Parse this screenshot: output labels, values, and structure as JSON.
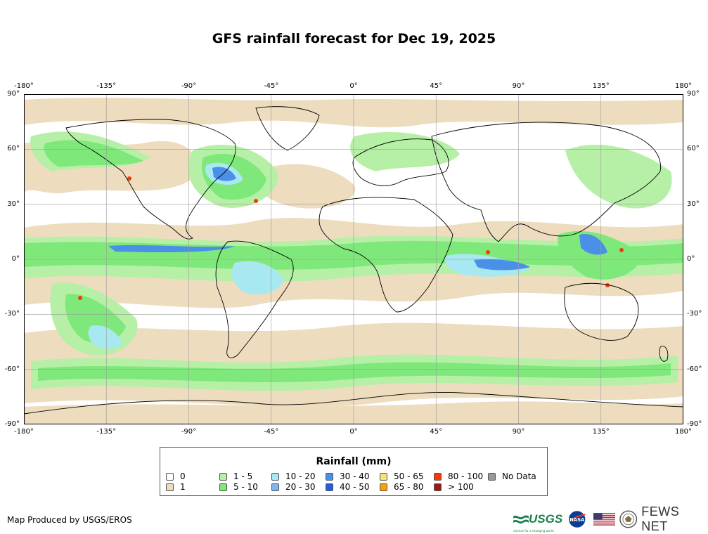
{
  "title": "GFS rainfall forecast for Dec 19, 2025",
  "map": {
    "lon_ticks": [
      "-180°",
      "-135°",
      "-90°",
      "-45°",
      "0°",
      "45°",
      "90°",
      "135°",
      "180°"
    ],
    "lat_ticks": [
      "90°",
      "60°",
      "30°",
      "0°",
      "-30°",
      "-60°",
      "-90°"
    ],
    "colors": {
      "ocean": "#ffffff",
      "land": "#ffffff",
      "coast": "#000000",
      "grid": "#9a9a9a",
      "light_rain": "#eddcbe",
      "rain_1_5": "#b5f0a6",
      "rain_5_10": "#7fe87a",
      "rain_10_20": "#a8e8f0",
      "rain_20_30": "#7fb8f0",
      "rain_30_40": "#4a90e8",
      "rain_40_50": "#1f5fe0",
      "rain_50_65": "#f7e07a",
      "rain_65_80": "#f5a20a",
      "rain_80_100": "#f53a0a",
      "rain_gt_100": "#9e1a1a"
    }
  },
  "legend": {
    "title": "Rainfall (mm)",
    "items": [
      {
        "label": "0",
        "color": "#ffffff"
      },
      {
        "label": "1",
        "color": "#eddcbe"
      },
      {
        "label": "1 - 5",
        "color": "#b5f0a6"
      },
      {
        "label": "5 - 10",
        "color": "#7fe87a"
      },
      {
        "label": "10 - 20",
        "color": "#a8e8f0"
      },
      {
        "label": "20 - 30",
        "color": "#7fb8f0"
      },
      {
        "label": "30 - 40",
        "color": "#4a90e8"
      },
      {
        "label": "40 - 50",
        "color": "#1f5fe0"
      },
      {
        "label": "50 - 65",
        "color": "#f7e07a"
      },
      {
        "label": "65 - 80",
        "color": "#f5a20a"
      },
      {
        "label": "80 - 100",
        "color": "#f53a0a"
      },
      {
        "label": "> 100",
        "color": "#9e1a1a"
      },
      {
        "label": "No Data",
        "color": "#999999"
      }
    ]
  },
  "footer": {
    "credit": "Map Produced by USGS/EROS",
    "logos": {
      "usgs": "USGS",
      "usgs_tagline": "science for a changing world",
      "nasa": "NASA",
      "fews": "FEWS NET"
    }
  }
}
